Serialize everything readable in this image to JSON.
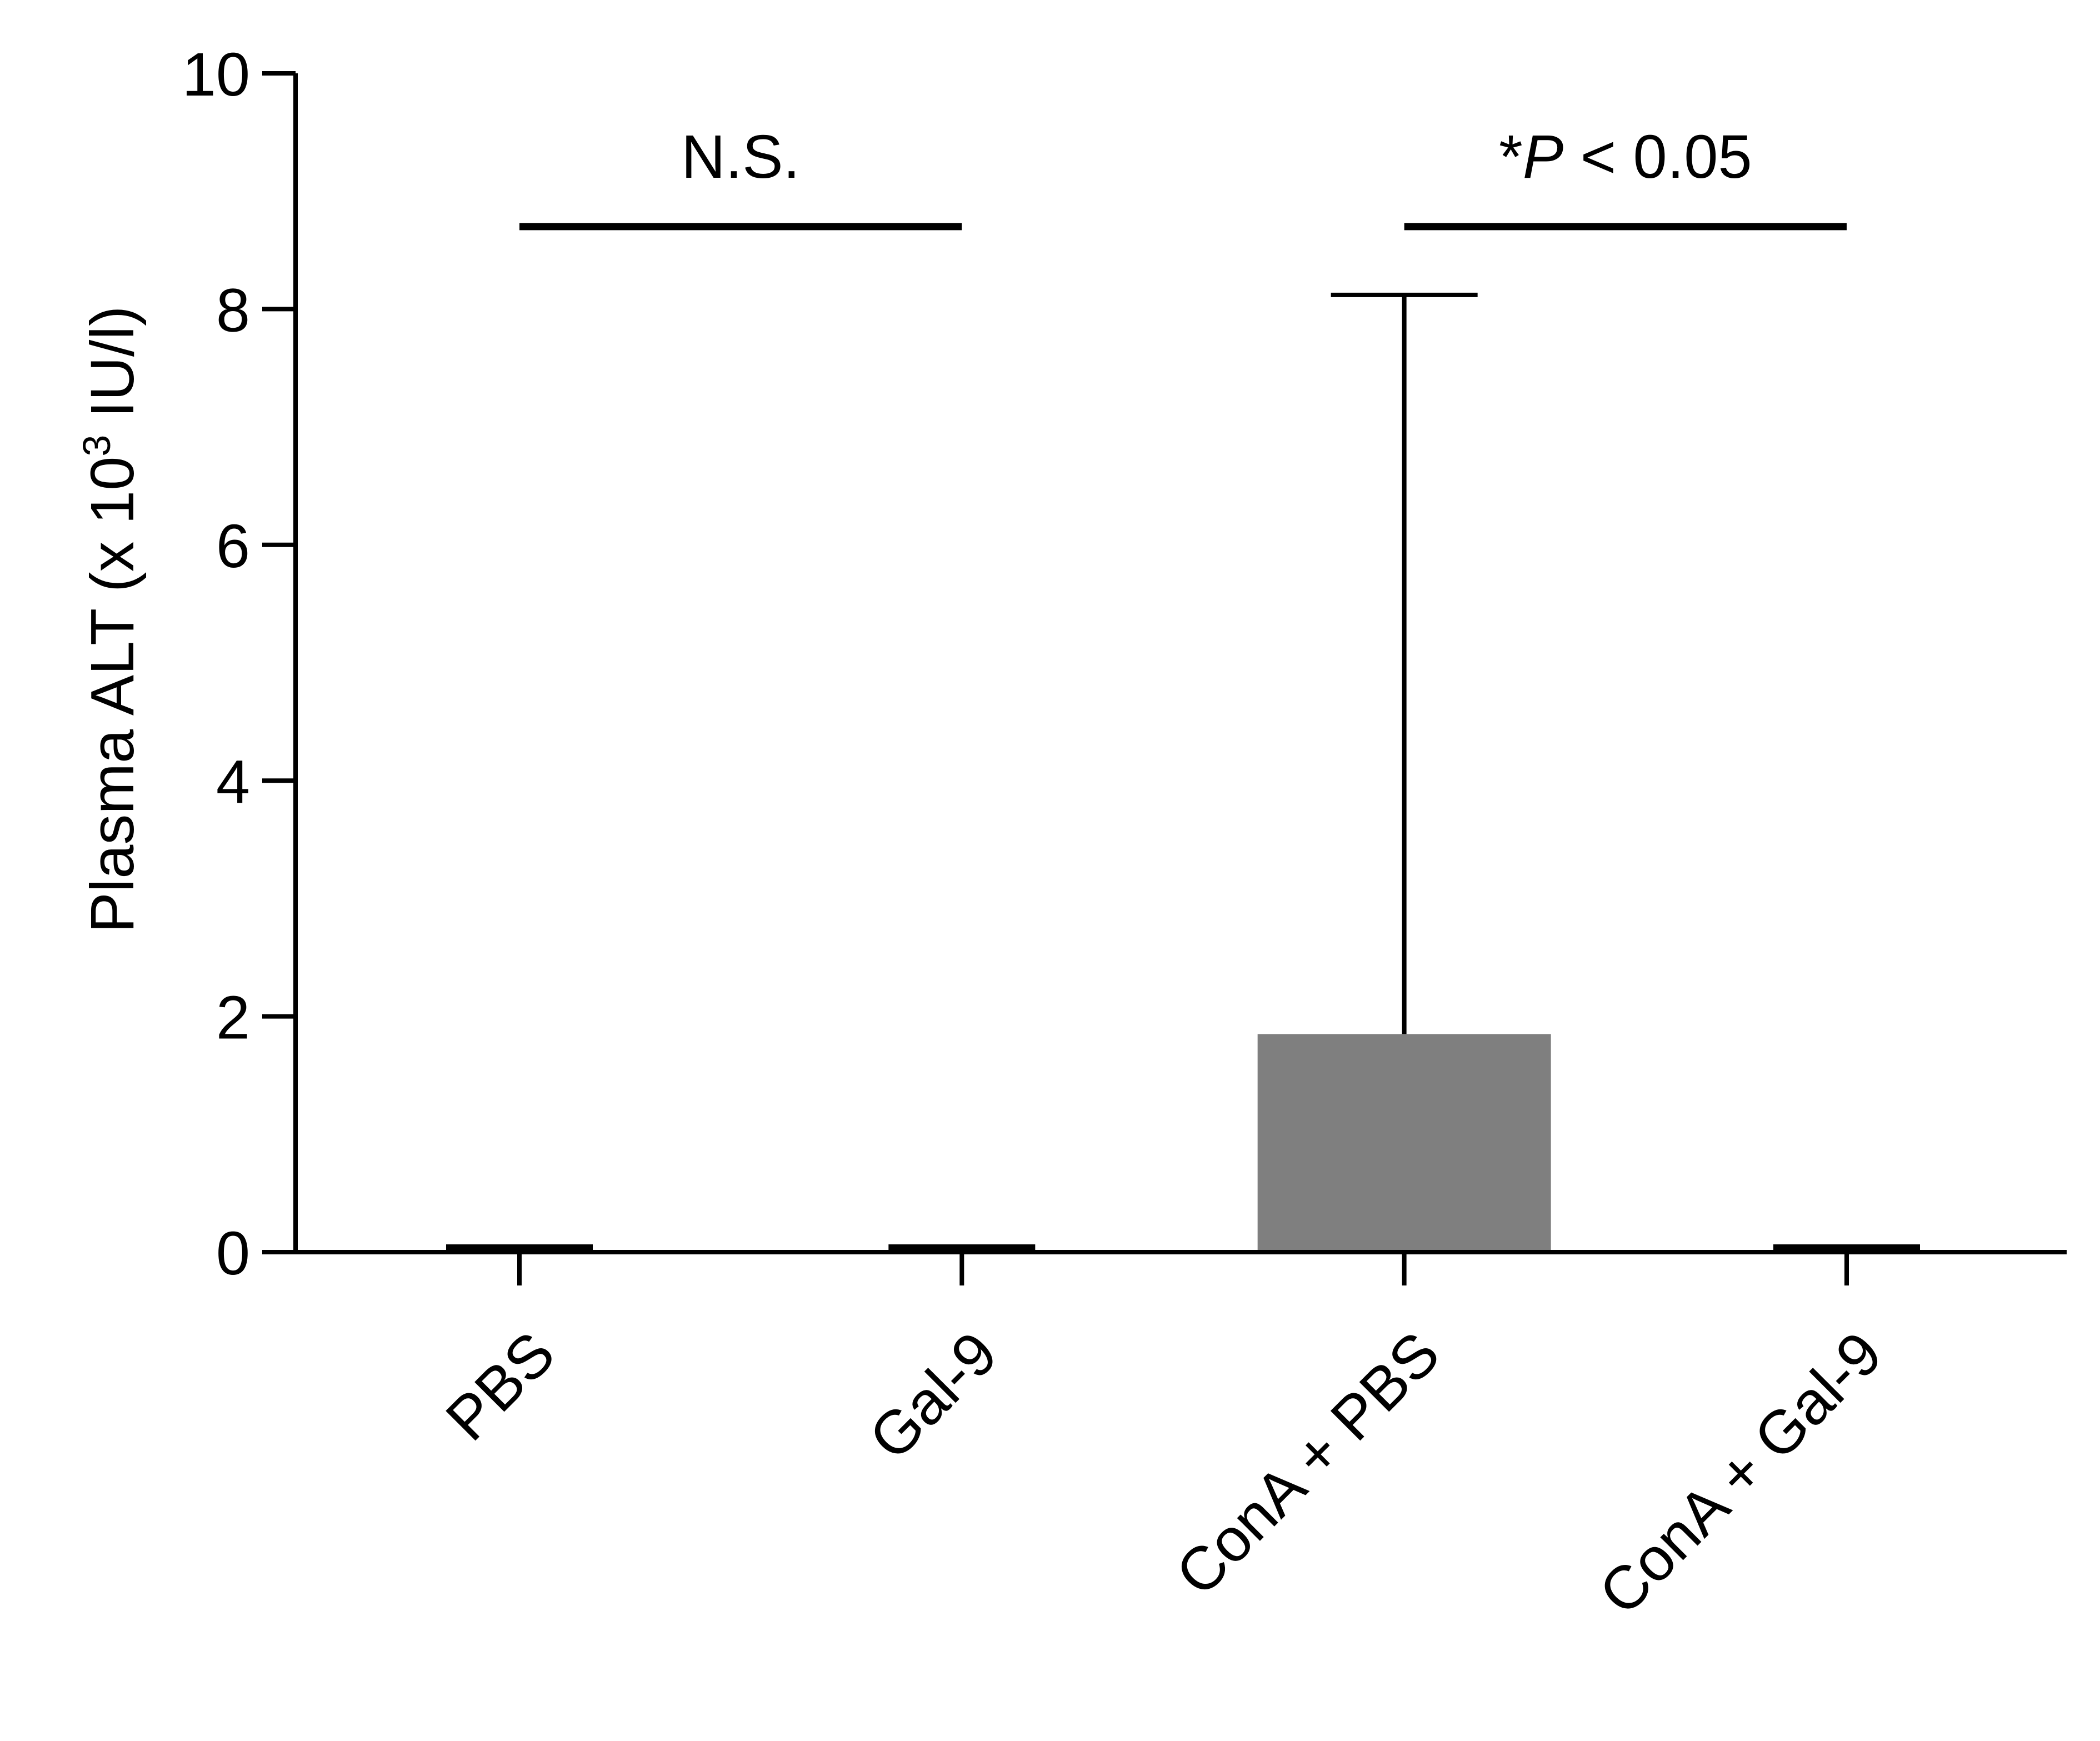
{
  "chart_data": {
    "type": "bar",
    "categories": [
      "PBS",
      "Gal-9",
      "ConA + PBS",
      "ConA + Gal-9"
    ],
    "values": [
      0.05,
      0.05,
      1.85,
      0.05
    ],
    "error_upper": [
      null,
      null,
      8.12,
      null
    ],
    "bar_color": "#7f7f7f",
    "ylabel": {
      "prefix": "Plasma ALT (x 10",
      "sup": "3",
      "suffix": " IU/l)"
    },
    "ylim": [
      0,
      10
    ],
    "yticks": [
      "0",
      "2",
      "4",
      "6",
      "8",
      "10"
    ],
    "grid": false,
    "legend": "none",
    "significance": [
      {
        "from": 0,
        "to": 1,
        "y": 8.7,
        "star": "",
        "p": "",
        "rest": "N.S."
      },
      {
        "from": 2,
        "to": 3,
        "y": 8.7,
        "star": "*",
        "p": "P",
        "rest": " < 0.05"
      }
    ]
  }
}
